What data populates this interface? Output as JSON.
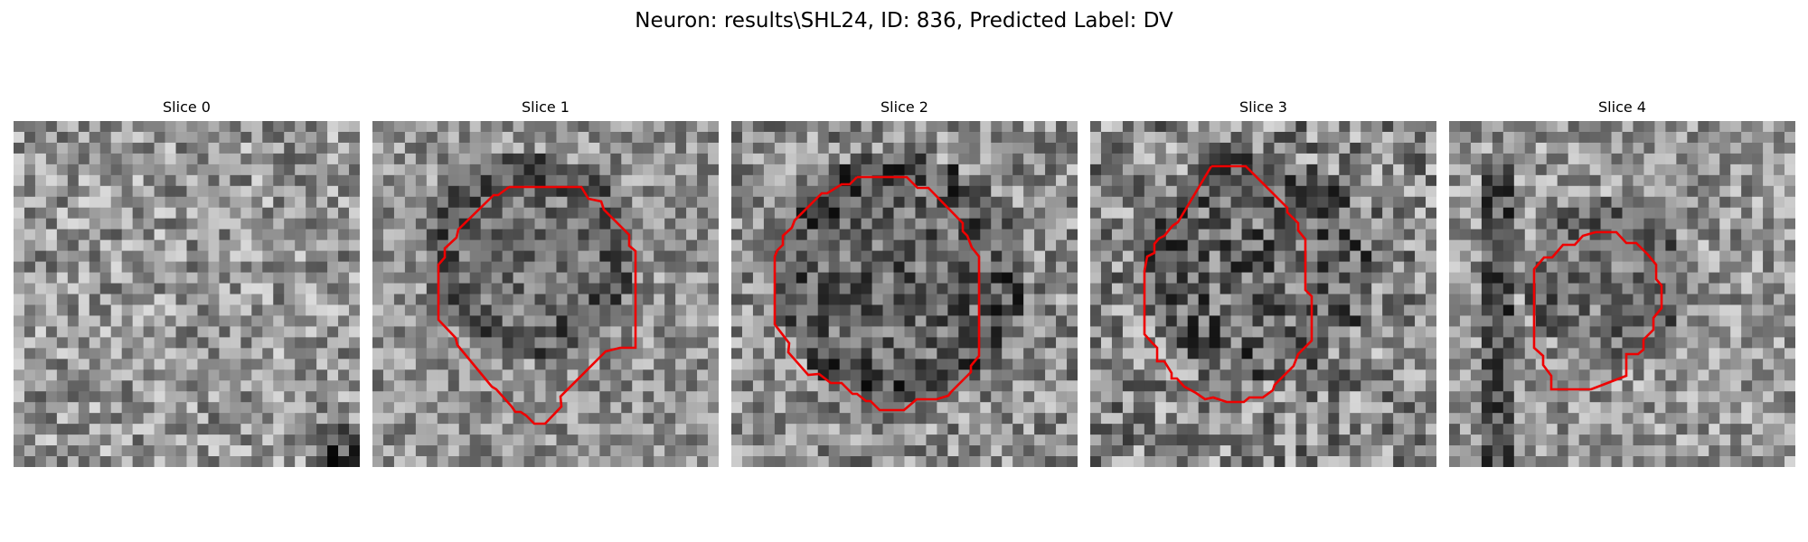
{
  "figure": {
    "suptitle": "Neuron: results\\SHL24, ID: 836, Predicted Label: DV",
    "contour_color": "#ee0000",
    "colormap": "gray",
    "panels": [
      {
        "title": "Slice 0",
        "has_contour": false
      },
      {
        "title": "Slice 1",
        "has_contour": true
      },
      {
        "title": "Slice 2",
        "has_contour": true
      },
      {
        "title": "Slice 3",
        "has_contour": true
      },
      {
        "title": "Slice 4",
        "has_contour": true
      }
    ]
  }
}
